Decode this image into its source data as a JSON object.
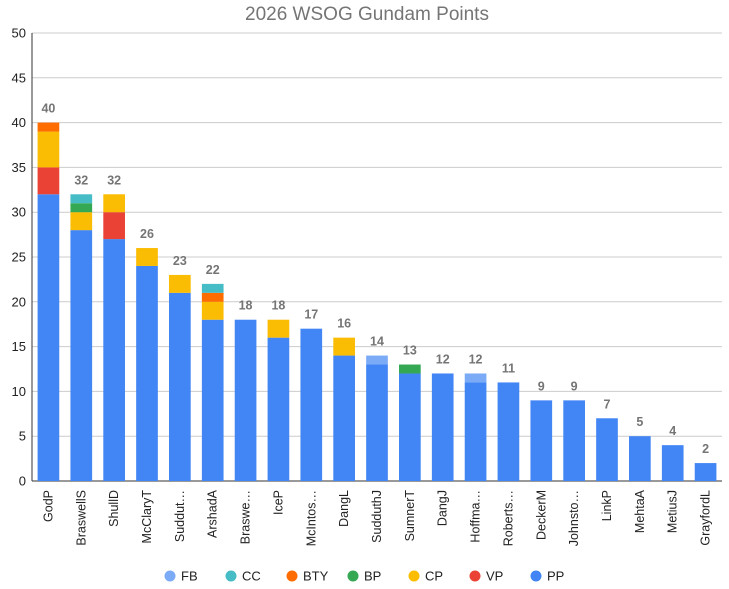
{
  "chart_data": {
    "type": "bar",
    "stacked": true,
    "title": "2026 WSOG Gundam Points",
    "xlabel": "",
    "ylabel": "",
    "ylim": [
      0,
      50
    ],
    "yticks": [
      0,
      5,
      10,
      15,
      20,
      25,
      30,
      35,
      40,
      45,
      50
    ],
    "grid": true,
    "legend_position": "bottom",
    "categories": [
      "GodP",
      "BraswellS",
      "ShullD",
      "McClaryT",
      "Suddut…",
      "ArshadA",
      "Braswe…",
      "IceP",
      "McIntos…",
      "DangL",
      "SudduthJ",
      "SumnerT",
      "DangJ",
      "Hoffma…",
      "Roberts…",
      "DeckerM",
      "Johnsto…",
      "LinkP",
      "MehtaA",
      "MetiusJ",
      "GrayfordL"
    ],
    "totals": [
      40,
      32,
      32,
      26,
      23,
      22,
      18,
      18,
      17,
      16,
      14,
      13,
      12,
      12,
      11,
      9,
      9,
      7,
      5,
      4,
      2
    ],
    "legend_order": [
      "FB",
      "CC",
      "BTY",
      "BP",
      "CP",
      "VP",
      "PP"
    ],
    "series": [
      {
        "name": "PP",
        "color": "#4285f4",
        "values": [
          32,
          28,
          27,
          24,
          21,
          18,
          18,
          16,
          17,
          14,
          13,
          12,
          12,
          11,
          11,
          9,
          9,
          7,
          5,
          4,
          2
        ]
      },
      {
        "name": "VP",
        "color": "#ea4335",
        "values": [
          3,
          0,
          3,
          0,
          0,
          0,
          0,
          0,
          0,
          0,
          0,
          0,
          0,
          0,
          0,
          0,
          0,
          0,
          0,
          0,
          0
        ]
      },
      {
        "name": "CP",
        "color": "#fbbc04",
        "values": [
          4,
          2,
          2,
          2,
          2,
          2,
          0,
          2,
          0,
          2,
          0,
          0,
          0,
          0,
          0,
          0,
          0,
          0,
          0,
          0,
          0
        ]
      },
      {
        "name": "BP",
        "color": "#34a853",
        "values": [
          0,
          1,
          0,
          0,
          0,
          0,
          0,
          0,
          0,
          0,
          0,
          1,
          0,
          0,
          0,
          0,
          0,
          0,
          0,
          0,
          0
        ]
      },
      {
        "name": "BTY",
        "color": "#ff6d01",
        "values": [
          1,
          0,
          0,
          0,
          0,
          1,
          0,
          0,
          0,
          0,
          0,
          0,
          0,
          0,
          0,
          0,
          0,
          0,
          0,
          0,
          0
        ]
      },
      {
        "name": "CC",
        "color": "#46bdc6",
        "values": [
          0,
          1,
          0,
          0,
          0,
          1,
          0,
          0,
          0,
          0,
          0,
          0,
          0,
          0,
          0,
          0,
          0,
          0,
          0,
          0,
          0
        ]
      },
      {
        "name": "FB",
        "color": "#7baaf7",
        "values": [
          0,
          0,
          0,
          0,
          0,
          0,
          0,
          0,
          0,
          0,
          1,
          0,
          0,
          1,
          0,
          0,
          0,
          0,
          0,
          0,
          0
        ]
      }
    ]
  }
}
